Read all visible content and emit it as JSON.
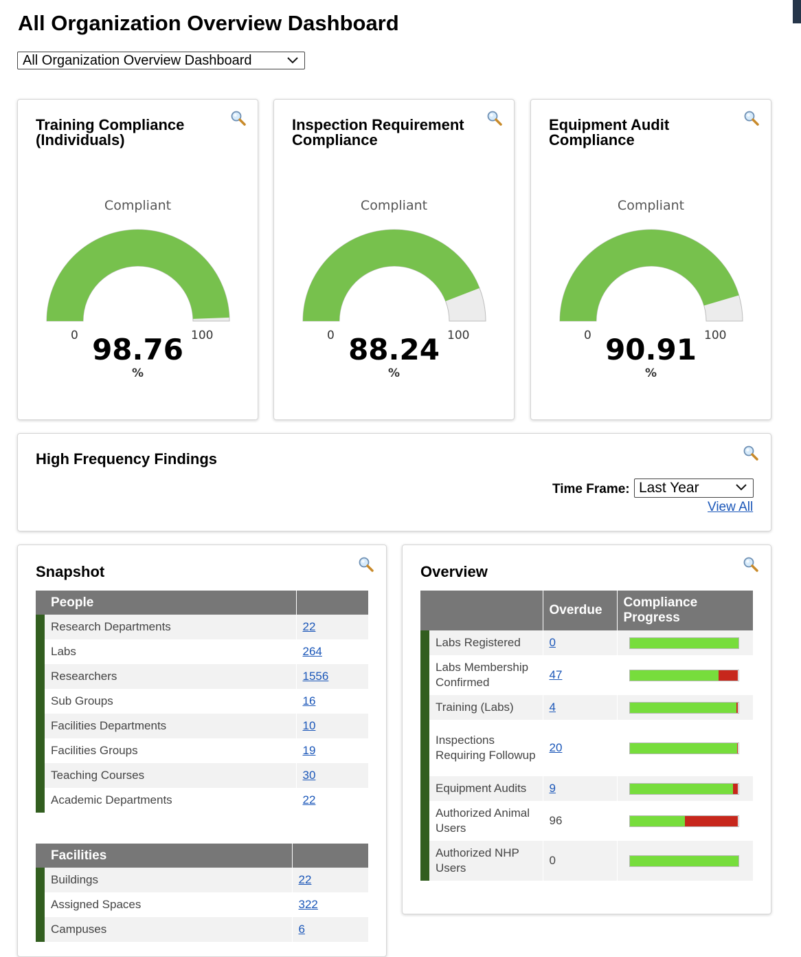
{
  "page_title": "All Organization Overview Dashboard",
  "dashboard_select": "All Organization Overview Dashboard",
  "gauges": [
    {
      "title": "Training Compliance (Individuals)",
      "subtitle": "Compliant",
      "min": "0",
      "max": "100",
      "value": 98.76,
      "value_text": "98.76",
      "unit": "%"
    },
    {
      "title": "Inspection Requirement Compliance",
      "subtitle": "Compliant",
      "min": "0",
      "max": "100",
      "value": 88.24,
      "value_text": "88.24",
      "unit": "%"
    },
    {
      "title": "Equipment Audit Compliance",
      "subtitle": "Compliant",
      "min": "0",
      "max": "100",
      "value": 90.91,
      "value_text": "90.91",
      "unit": "%"
    }
  ],
  "colors": {
    "gauge_fill": "#77c14d",
    "gauge_track": "#ececec",
    "progress_ok": "#77dd3c",
    "progress_overdue": "#c7271c",
    "header_bg": "#777777",
    "accent_bar": "#325e1f",
    "link": "#1a56b8"
  },
  "icons": {
    "zoom": "magnifier-icon",
    "dropdown": "chevron-down-icon"
  },
  "high_frequency": {
    "title": "High Frequency Findings",
    "time_frame_label": "Time Frame:",
    "time_frame_value": "Last Year",
    "view_all": "View All"
  },
  "snapshot": {
    "title": "Snapshot",
    "people": {
      "header": "People",
      "rows": [
        {
          "label": "Research Departments",
          "value": "22"
        },
        {
          "label": "Labs",
          "value": "264"
        },
        {
          "label": "Researchers",
          "value": "1556"
        },
        {
          "label": "Sub Groups",
          "value": "16"
        },
        {
          "label": "Facilities Departments",
          "value": "10"
        },
        {
          "label": "Facilities Groups",
          "value": "19"
        },
        {
          "label": "Teaching Courses",
          "value": "30"
        },
        {
          "label": "Academic Departments",
          "value": "22"
        }
      ]
    },
    "facilities": {
      "header": "Facilities",
      "rows": [
        {
          "label": "Buildings",
          "value": "22"
        },
        {
          "label": "Assigned Spaces",
          "value": "322"
        },
        {
          "label": "Campuses",
          "value": "6"
        }
      ]
    }
  },
  "overview": {
    "title": "Overview",
    "col_overdue": "Overdue",
    "col_progress": "Compliance Progress",
    "rows": [
      {
        "label": "Labs Registered",
        "overdue": "0",
        "link": true,
        "progress": 1.0
      },
      {
        "label": "Labs Membership Confirmed",
        "overdue": "47",
        "link": true,
        "progress": 0.82
      },
      {
        "label": "Training (Labs)",
        "overdue": "4",
        "link": true,
        "progress": 0.985
      },
      {
        "label": "Inspections Requiring Followup",
        "overdue": "20",
        "link": true,
        "progress": 0.99
      },
      {
        "label": "Equipment Audits",
        "overdue": "9",
        "link": true,
        "progress": 0.95
      },
      {
        "label": "Authorized Animal Users",
        "overdue": "96",
        "link": false,
        "progress": 0.51
      },
      {
        "label": "Authorized NHP Users",
        "overdue": "0",
        "link": false,
        "progress": 1.0
      }
    ]
  }
}
